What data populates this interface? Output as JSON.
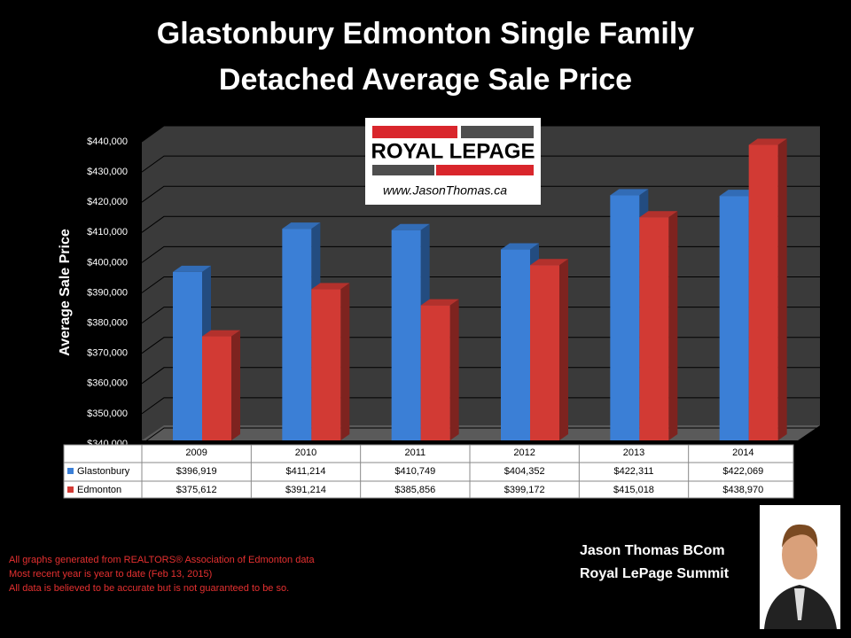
{
  "chart_data": {
    "type": "bar",
    "title": [
      "Glastonbury Edmonton Single Family",
      "Detached Average Sale Price"
    ],
    "y_label": "Average Sale Price",
    "categories": [
      "2009",
      "2010",
      "2011",
      "2012",
      "2013",
      "2014"
    ],
    "series": [
      {
        "name": "Glastonbury",
        "color": "#3b7fd6",
        "values": [
          396919,
          411214,
          410749,
          404352,
          422311,
          422069
        ],
        "value_labels": [
          "$396,919",
          "$411,214",
          "$410,749",
          "$404,352",
          "$422,311",
          "$422,069"
        ]
      },
      {
        "name": "Edmonton",
        "color": "#d23a34",
        "values": [
          375612,
          391214,
          385856,
          399172,
          415018,
          438970
        ],
        "value_labels": [
          "$375,612",
          "$391,214",
          "$385,856",
          "$399,172",
          "$415,018",
          "$438,970"
        ]
      }
    ],
    "ylim": [
      340000,
      440000
    ],
    "yticks": [
      {
        "value": 340000,
        "label": "$340,000"
      },
      {
        "value": 350000,
        "label": "$350,000"
      },
      {
        "value": 360000,
        "label": "$360,000"
      },
      {
        "value": 370000,
        "label": "$370,000"
      },
      {
        "value": 380000,
        "label": "$380,000"
      },
      {
        "value": 390000,
        "label": "$390,000"
      },
      {
        "value": 400000,
        "label": "$400,000"
      },
      {
        "value": 410000,
        "label": "$410,000"
      },
      {
        "value": 420000,
        "label": "$420,000"
      },
      {
        "value": 430000,
        "label": "$430,000"
      },
      {
        "value": 440000,
        "label": "$440,000"
      }
    ],
    "grid": true
  },
  "logo": {
    "brand": "ROYAL LEPAGE",
    "url": "www.JasonThomas.ca"
  },
  "footnotes": [
    "All graphs generated from REALTORS® Association of Edmonton data",
    "Most recent year is year to date (Feb 13, 2015)",
    "All data is believed to be accurate but is not guaranteed to be so."
  ],
  "signature": [
    "Jason Thomas BCom",
    "Royal LePage Summit"
  ]
}
